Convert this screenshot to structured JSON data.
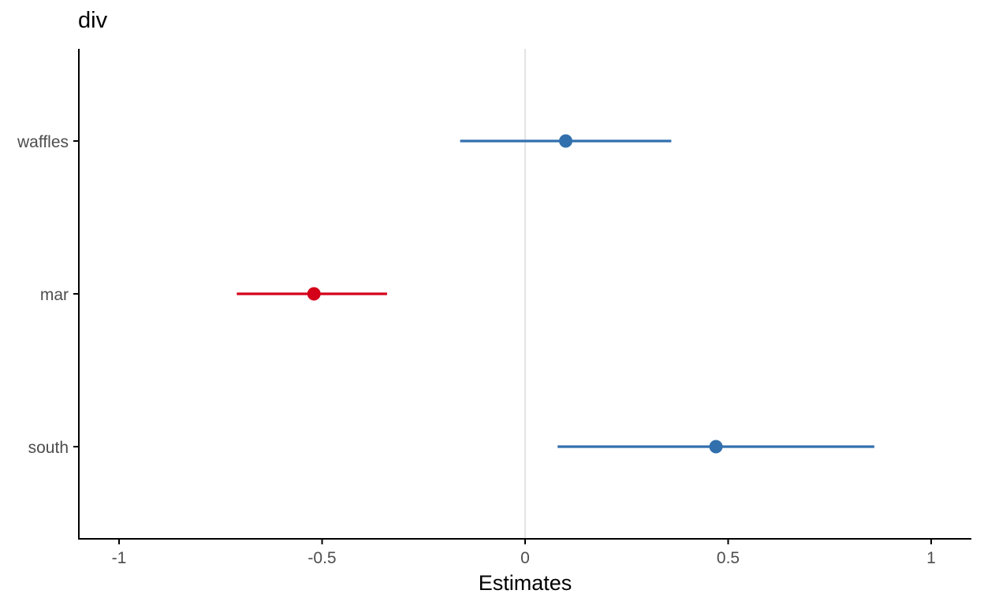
{
  "chart_data": {
    "type": "forest",
    "title": "div",
    "xlabel": "Estimates",
    "ylabel": "",
    "xlim": [
      -1.1,
      1.1
    ],
    "x_ticks": [
      -1,
      -0.5,
      0,
      0.5,
      1
    ],
    "x_tick_labels": [
      "-1",
      "-0.5",
      "0",
      "0.5",
      "1"
    ],
    "reference_line": 0,
    "grid": false,
    "categories": [
      "waffles",
      "mar",
      "south"
    ],
    "estimates": [
      0.1,
      -0.52,
      0.47
    ],
    "conf_low": [
      -0.16,
      -0.71,
      0.08
    ],
    "conf_high": [
      0.36,
      -0.34,
      0.86
    ],
    "colors": [
      "#3270ad",
      "#d4001a",
      "#3270ad"
    ],
    "positive_color": "#3270ad",
    "negative_color": "#d4001a",
    "reference_line_color": "#dcdcdc",
    "axis_color": "#000000",
    "tick_label_color": "#4d4d4d"
  }
}
